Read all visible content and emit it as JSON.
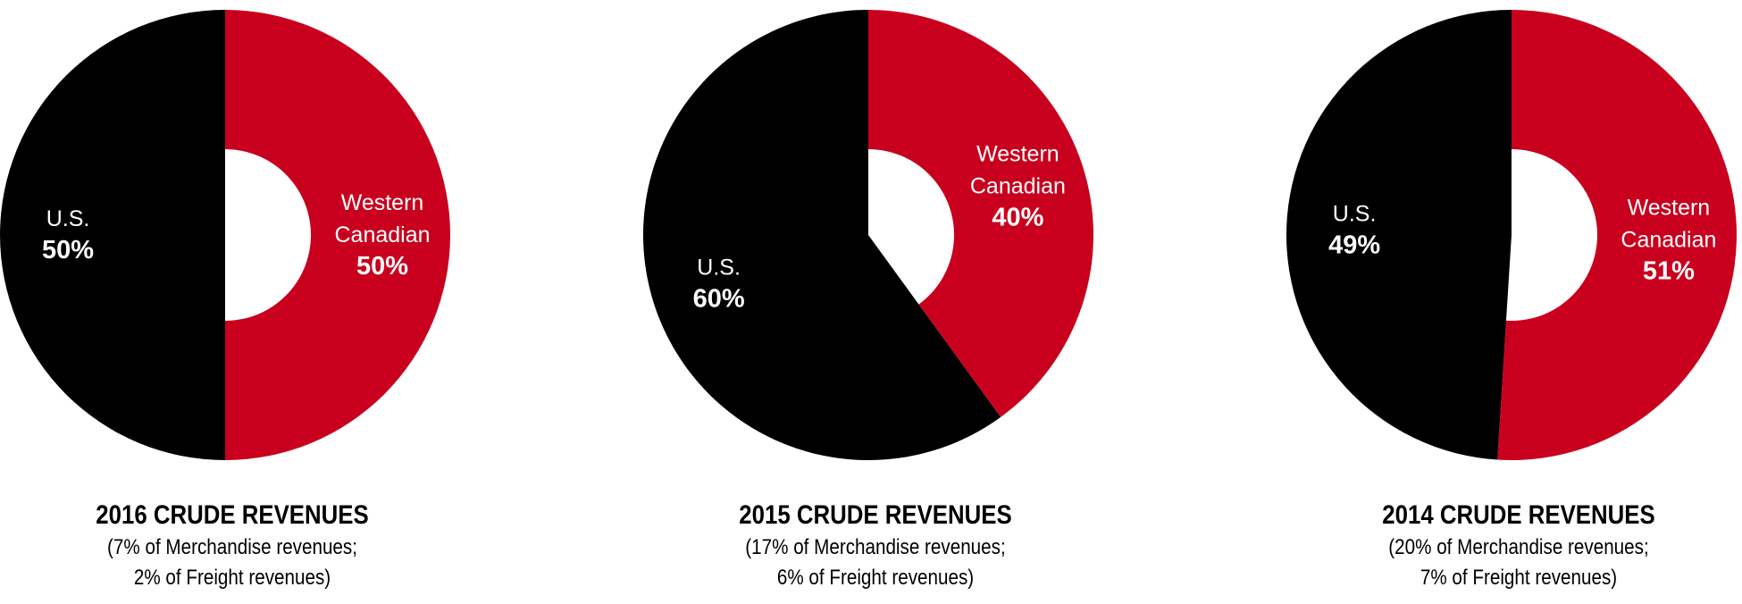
{
  "colors": {
    "us": "#000000",
    "western_canadian": "#c8001e",
    "hole": "#ffffff",
    "label": "#ffffff"
  },
  "chart_data": [
    {
      "type": "pie",
      "title": "2016 CRUDE REVENUES",
      "subtitle_lines": [
        "(7% of Merchandise revenues;",
        "2% of Freight revenues)"
      ],
      "slices": [
        {
          "label_lines": [
            "Western",
            "Canadian"
          ],
          "percent_label": "50%",
          "value": 50,
          "color_key": "western_canadian"
        },
        {
          "label_lines": [
            "U.S."
          ],
          "percent_label": "50%",
          "value": 50,
          "color_key": "us"
        }
      ]
    },
    {
      "type": "pie",
      "title": "2015 CRUDE REVENUES",
      "subtitle_lines": [
        "(17% of Merchandise revenues;",
        "6% of Freight revenues)"
      ],
      "slices": [
        {
          "label_lines": [
            "Western",
            "Canadian"
          ],
          "percent_label": "40%",
          "value": 40,
          "color_key": "western_canadian"
        },
        {
          "label_lines": [
            "U.S."
          ],
          "percent_label": "60%",
          "value": 60,
          "color_key": "us"
        }
      ]
    },
    {
      "type": "pie",
      "title": "2014 CRUDE REVENUES",
      "subtitle_lines": [
        "(20% of Merchandise revenues;",
        "7% of Freight revenues)"
      ],
      "slices": [
        {
          "label_lines": [
            "Western",
            "Canadian"
          ],
          "percent_label": "51%",
          "value": 51,
          "color_key": "western_canadian"
        },
        {
          "label_lines": [
            "U.S."
          ],
          "percent_label": "49%",
          "value": 49,
          "color_key": "us"
        }
      ]
    }
  ]
}
